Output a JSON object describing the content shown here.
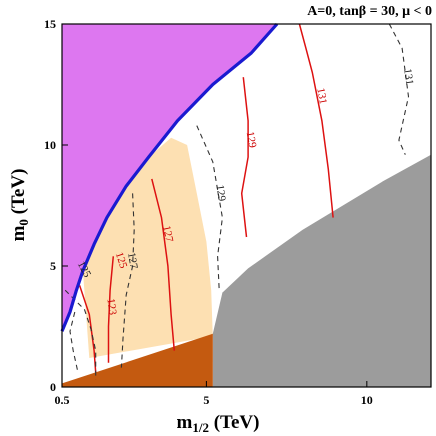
{
  "chart_data": {
    "type": "contour",
    "title": "A=0, tanβ = 30, μ < 0",
    "xlabel": {
      "main": "m",
      "sub": "1/2",
      "unit": " (TeV)"
    },
    "ylabel": {
      "main": "m",
      "sub": "0",
      "unit": " (TeV)"
    },
    "xlim": [
      0.5,
      12
    ],
    "ylim": [
      0,
      15
    ],
    "x_ticks": [
      {
        "value": 0.5,
        "label": "0.5"
      },
      {
        "value": 5,
        "label": "5"
      },
      {
        "value": 10,
        "label": "10"
      }
    ],
    "y_ticks": [
      {
        "value": 0,
        "label": "0"
      },
      {
        "value": 5,
        "label": "5"
      },
      {
        "value": 10,
        "label": "10"
      },
      {
        "value": 15,
        "label": "15"
      }
    ],
    "regions": [
      {
        "name": "violet-region",
        "color": "#dd77f0",
        "points": [
          [
            0.5,
            15
          ],
          [
            7.2,
            15
          ],
          [
            6.4,
            13.8
          ],
          [
            5.2,
            12.5
          ],
          [
            4.1,
            11
          ],
          [
            3.2,
            9.5
          ],
          [
            2.5,
            8.3
          ],
          [
            1.9,
            7.0
          ],
          [
            1.5,
            5.9
          ],
          [
            1.15,
            4.8
          ],
          [
            0.95,
            4.0
          ],
          [
            0.75,
            3.1
          ],
          [
            0.5,
            2.3
          ]
        ]
      },
      {
        "name": "orange-band",
        "color": "#fde0b2",
        "points": [
          [
            1.15,
            4.8
          ],
          [
            1.5,
            5.9
          ],
          [
            1.9,
            7.0
          ],
          [
            2.5,
            8.3
          ],
          [
            3.2,
            9.5
          ],
          [
            3.9,
            10.3
          ],
          [
            4.4,
            10.0
          ],
          [
            4.7,
            8.0
          ],
          [
            5.0,
            6.0
          ],
          [
            5.15,
            4.0
          ],
          [
            5.2,
            2.1
          ],
          [
            1.35,
            1.2
          ],
          [
            1.25,
            3.0
          ]
        ]
      },
      {
        "name": "gray-region",
        "color": "#9c9c9c",
        "points": [
          [
            5.2,
            0
          ],
          [
            5.2,
            2.2
          ],
          [
            5.5,
            3.9
          ],
          [
            6.3,
            4.9
          ],
          [
            8.0,
            6.5
          ],
          [
            10.5,
            8.5
          ],
          [
            12,
            9.6
          ],
          [
            12,
            0
          ]
        ]
      },
      {
        "name": "brown-region",
        "color": "#c45a10",
        "points": [
          [
            0.5,
            0
          ],
          [
            5.2,
            0
          ],
          [
            5.2,
            2.2
          ],
          [
            0.5,
            0.15
          ]
        ]
      }
    ],
    "boundary": {
      "name": "blue-boundary",
      "color": "#1a1ad0",
      "points": [
        [
          0.5,
          2.3
        ],
        [
          0.75,
          3.1
        ],
        [
          0.95,
          4.0
        ],
        [
          1.15,
          4.8
        ],
        [
          1.5,
          5.9
        ],
        [
          1.9,
          7.0
        ],
        [
          2.5,
          8.3
        ],
        [
          3.2,
          9.5
        ],
        [
          4.1,
          11
        ],
        [
          5.2,
          12.5
        ],
        [
          6.4,
          13.8
        ],
        [
          7.2,
          15
        ]
      ]
    },
    "series": [
      {
        "name": "125",
        "color": "#dd1111",
        "dashed": false,
        "label_at": [
          2.25,
          5.2
        ],
        "label_angle": 72,
        "points": [
          [
            1.05,
            4.2
          ],
          [
            1.35,
            3.0
          ],
          [
            1.5,
            1.5
          ],
          [
            1.55,
            0.6
          ]
        ]
      },
      {
        "name": "127",
        "color": "#dd1111",
        "dashed": false,
        "label_at": [
          3.7,
          6.3
        ],
        "label_angle": 78,
        "points": [
          [
            3.3,
            8.6
          ],
          [
            3.6,
            7.0
          ],
          [
            3.8,
            5.0
          ],
          [
            3.9,
            3.0
          ],
          [
            4.0,
            1.5
          ]
        ]
      },
      {
        "name": "129",
        "color": "#dd1111",
        "dashed": false,
        "label_at": [
          6.3,
          10.2
        ],
        "label_angle": 80,
        "points": [
          [
            6.15,
            12.8
          ],
          [
            6.3,
            11.0
          ],
          [
            6.3,
            9.5
          ],
          [
            6.1,
            8.0
          ],
          [
            6.25,
            6.2
          ]
        ]
      },
      {
        "name": "131",
        "color": "#dd1111",
        "dashed": false,
        "label_at": [
          8.5,
          12.0
        ],
        "label_angle": 80,
        "points": [
          [
            7.9,
            15.0
          ],
          [
            8.1,
            14.0
          ],
          [
            8.3,
            13.0
          ],
          [
            8.6,
            11.0
          ],
          [
            8.8,
            9.0
          ],
          [
            8.95,
            7.0
          ]
        ]
      },
      {
        "name": "123",
        "color": "#dd1111",
        "dashed": false,
        "label_at": [
          1.95,
          3.3
        ],
        "label_angle": 82,
        "points": [
          [
            2.1,
            5.4
          ],
          [
            2.0,
            4.0
          ],
          [
            1.95,
            2.5
          ],
          [
            1.95,
            1.0
          ]
        ]
      },
      {
        "name": "125",
        "color": "#333333",
        "dashed": true,
        "label_at": [
          1.1,
          4.8
        ],
        "label_angle": 62,
        "points": [
          [
            0.6,
            4.0
          ],
          [
            0.9,
            3.6
          ],
          [
            1.2,
            3.2
          ],
          [
            1.4,
            2.4
          ],
          [
            1.55,
            1.5
          ],
          [
            1.55,
            0.3
          ]
        ]
      },
      {
        "name": "127",
        "color": "#333333",
        "dashed": true,
        "label_at": [
          2.6,
          5.2
        ],
        "label_angle": 80,
        "points": [
          [
            2.7,
            8.0
          ],
          [
            2.75,
            6.5
          ],
          [
            2.7,
            5.0
          ],
          [
            2.5,
            3.8
          ],
          [
            2.4,
            2.0
          ],
          [
            2.35,
            0.8
          ]
        ]
      },
      {
        "name": "129",
        "color": "#333333",
        "dashed": true,
        "label_at": [
          5.35,
          8.0
        ],
        "label_angle": 82,
        "points": [
          [
            4.7,
            10.8
          ],
          [
            5.2,
            9.3
          ],
          [
            5.5,
            7.0
          ],
          [
            5.35,
            5.4
          ],
          [
            5.4,
            4.0
          ]
        ]
      },
      {
        "name": "131",
        "color": "#333333",
        "dashed": true,
        "label_at": [
          11.2,
          12.8
        ],
        "label_angle": 82,
        "points": [
          [
            10.7,
            15.0
          ],
          [
            11.1,
            14.0
          ],
          [
            11.3,
            12.0
          ],
          [
            11.0,
            10.2
          ],
          [
            11.2,
            9.6
          ]
        ]
      },
      {
        "name": "",
        "color": "#333333",
        "dashed": true,
        "label_at": null,
        "label_angle": 0,
        "points": [
          [
            0.9,
            3.1
          ],
          [
            0.75,
            2.3
          ],
          [
            0.85,
            1.5
          ],
          [
            1.0,
            0.6
          ]
        ]
      }
    ]
  }
}
